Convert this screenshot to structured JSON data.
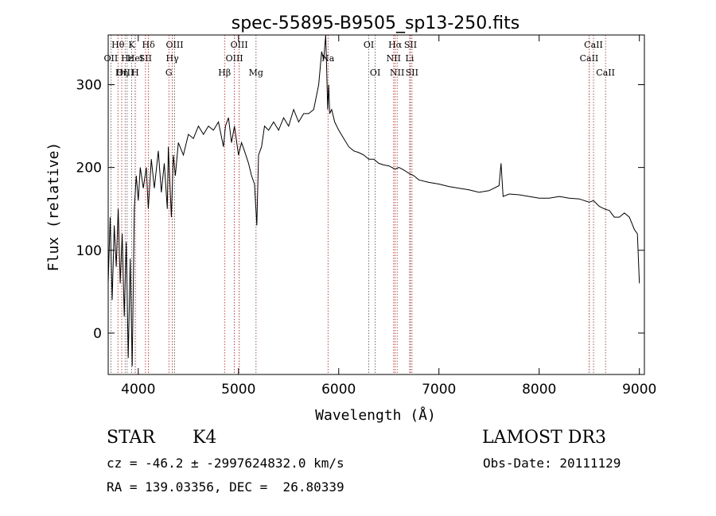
{
  "chart_data": {
    "type": "line",
    "title": "spec-55895-B9505_sp13-250.fits",
    "xlabel": "Wavelength (Å)",
    "ylabel": "Flux (relative)",
    "xlim": [
      3700,
      9050
    ],
    "ylim": [
      -50,
      360
    ],
    "xticks": [
      4000,
      5000,
      6000,
      7000,
      8000,
      9000
    ],
    "yticks": [
      0,
      100,
      200,
      300
    ],
    "grid": false,
    "line_color": "#000000",
    "marker_color": "#b22222",
    "series": [
      {
        "x": [
          3700,
          3720,
          3740,
          3760,
          3780,
          3800,
          3820,
          3840,
          3860,
          3880,
          3900,
          3920,
          3940,
          3960,
          3980,
          4000,
          4020,
          4050,
          4080,
          4100,
          4130,
          4160,
          4200,
          4230,
          4260,
          4290,
          4300,
          4330,
          4350,
          4370,
          4400,
          4450,
          4500,
          4550,
          4600,
          4650,
          4700,
          4750,
          4800,
          4850,
          4870,
          4900,
          4930,
          4960,
          5000,
          5030,
          5060,
          5100,
          5130,
          5160,
          5183,
          5200,
          5230,
          5260,
          5300,
          5350,
          5400,
          5450,
          5500,
          5550,
          5600,
          5650,
          5700,
          5750,
          5800,
          5830,
          5850,
          5870,
          5880,
          5890,
          5900,
          5910,
          5930,
          5960,
          6000,
          6050,
          6100,
          6150,
          6200,
          6250,
          6300,
          6350,
          6400,
          6450,
          6500,
          6563,
          6600,
          6650,
          6700,
          6750,
          6800,
          6900,
          7000,
          7100,
          7200,
          7300,
          7400,
          7500,
          7600,
          7620,
          7640,
          7700,
          7800,
          7900,
          8000,
          8100,
          8200,
          8300,
          8400,
          8500,
          8542,
          8600,
          8650,
          8700,
          8750,
          8800,
          8850,
          8900,
          8950,
          8980,
          9000
        ],
        "y": [
          60,
          140,
          40,
          130,
          80,
          150,
          60,
          120,
          20,
          110,
          -30,
          90,
          -40,
          150,
          190,
          160,
          200,
          175,
          200,
          150,
          210,
          175,
          220,
          170,
          205,
          150,
          225,
          140,
          215,
          190,
          230,
          215,
          240,
          235,
          250,
          240,
          250,
          245,
          255,
          225,
          250,
          260,
          230,
          250,
          215,
          230,
          220,
          205,
          190,
          180,
          130,
          215,
          225,
          250,
          245,
          255,
          245,
          260,
          250,
          270,
          255,
          265,
          265,
          270,
          300,
          340,
          330,
          360,
          320,
          270,
          300,
          265,
          270,
          255,
          245,
          235,
          225,
          220,
          218,
          215,
          210,
          210,
          205,
          203,
          202,
          198,
          200,
          197,
          193,
          190,
          185,
          182,
          180,
          177,
          175,
          173,
          170,
          172,
          178,
          205,
          165,
          168,
          167,
          165,
          163,
          163,
          165,
          163,
          162,
          158,
          160,
          153,
          150,
          148,
          140,
          140,
          145,
          140,
          125,
          120,
          60
        ]
      }
    ],
    "line_markers": [
      {
        "name": "Hθ",
        "wavelength": 3797,
        "row": 0
      },
      {
        "name": "OII",
        "wavelength": 3727,
        "row": 1
      },
      {
        "name": "OIII",
        "wavelength": 3869,
        "row": 2
      },
      {
        "name": "Hε",
        "wavelength": 3889,
        "row": 1
      },
      {
        "name": "Hη",
        "wavelength": 3835,
        "row": 2
      },
      {
        "name": "K",
        "wavelength": 3934,
        "row": 0
      },
      {
        "name": "H",
        "wavelength": 3969,
        "row": 2
      },
      {
        "name": "HeI",
        "wavelength": 3970,
        "row": 1
      },
      {
        "name": "SII",
        "wavelength": 4072,
        "row": 1
      },
      {
        "name": "Hδ",
        "wavelength": 4102,
        "row": 0
      },
      {
        "name": "OIII",
        "wavelength": 4363,
        "row": 0
      },
      {
        "name": "Hγ",
        "wavelength": 4340,
        "row": 1
      },
      {
        "name": "G",
        "wavelength": 4305,
        "row": 2
      },
      {
        "name": "Hβ",
        "wavelength": 4861,
        "row": 2
      },
      {
        "name": "OIII",
        "wavelength": 5007,
        "row": 0
      },
      {
        "name": "OIII",
        "wavelength": 4959,
        "row": 1
      },
      {
        "name": "Mg",
        "wavelength": 5175,
        "row": 2
      },
      {
        "name": "Na",
        "wavelength": 5893,
        "row": 1
      },
      {
        "name": "OI",
        "wavelength": 6300,
        "row": 0
      },
      {
        "name": "OI",
        "wavelength": 6364,
        "row": 2
      },
      {
        "name": "Hα",
        "wavelength": 6563,
        "row": 0
      },
      {
        "name": "NII",
        "wavelength": 6548,
        "row": 1
      },
      {
        "name": "NII",
        "wavelength": 6583,
        "row": 2
      },
      {
        "name": "SII",
        "wavelength": 6716,
        "row": 0
      },
      {
        "name": "Li",
        "wavelength": 6708,
        "row": 1
      },
      {
        "name": "SII",
        "wavelength": 6731,
        "row": 2
      },
      {
        "name": "CaII",
        "wavelength": 8542,
        "row": 0
      },
      {
        "name": "CaII",
        "wavelength": 8498,
        "row": 1
      },
      {
        "name": "CaII",
        "wavelength": 8662,
        "row": 2
      }
    ]
  },
  "info": {
    "class": "STAR",
    "subclass": "K4",
    "survey": "LAMOST DR3",
    "cz": "cz = -46.2 ± -2997624832.0 km/s",
    "obs_date": "Obs-Date: 20111129",
    "coords": "RA = 139.03356, DEC =  26.80339"
  }
}
